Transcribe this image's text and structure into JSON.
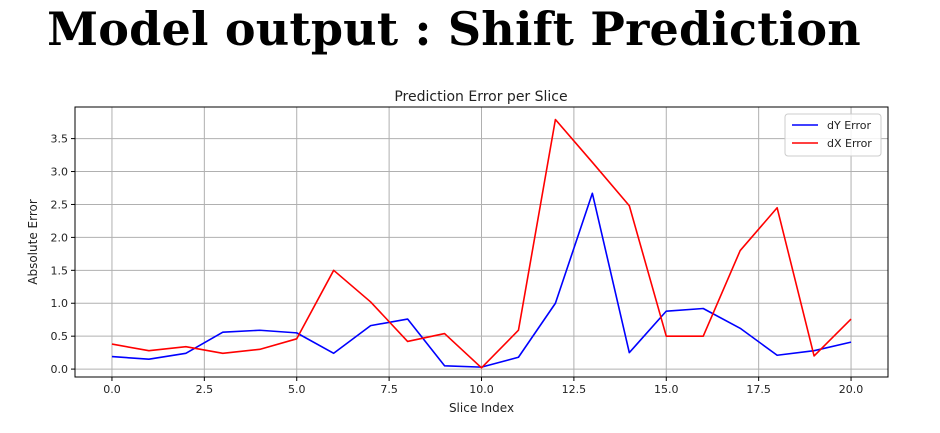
{
  "page": {
    "headline": "Model output : Shift Prediction"
  },
  "chart_data": {
    "type": "line",
    "title": "Prediction Error per Slice",
    "xlabel": "Slice Index",
    "ylabel": "Absolute Error",
    "xlim": [
      -1.0,
      21.0
    ],
    "ylim": [
      -0.12,
      3.98
    ],
    "xticks": [
      0.0,
      2.5,
      5.0,
      7.5,
      10.0,
      12.5,
      15.0,
      17.5,
      20.0
    ],
    "xtick_labels": [
      "0.0",
      "2.5",
      "5.0",
      "7.5",
      "10.0",
      "12.5",
      "15.0",
      "17.5",
      "20.0"
    ],
    "yticks": [
      0.0,
      0.5,
      1.0,
      1.5,
      2.0,
      2.5,
      3.0,
      3.5
    ],
    "ytick_labels": [
      "0.0",
      "0.5",
      "1.0",
      "1.5",
      "2.0",
      "2.5",
      "3.0",
      "3.5"
    ],
    "grid": true,
    "legend_position": "top-right",
    "x": [
      0,
      1,
      2,
      3,
      4,
      5,
      6,
      7,
      8,
      9,
      10,
      11,
      12,
      13,
      14,
      15,
      16,
      17,
      18,
      19,
      20
    ],
    "series": [
      {
        "name": "dY Error",
        "color": "#0000ff",
        "values": [
          0.19,
          0.15,
          0.24,
          0.56,
          0.59,
          0.55,
          0.24,
          0.66,
          0.76,
          0.05,
          0.03,
          0.18,
          1.0,
          2.67,
          0.25,
          0.88,
          0.92,
          0.62,
          0.21,
          0.28,
          0.41
        ]
      },
      {
        "name": "dX Error",
        "color": "#ff0000",
        "values": [
          0.38,
          0.28,
          0.34,
          0.24,
          0.3,
          0.46,
          1.5,
          1.02,
          0.42,
          0.54,
          0.02,
          0.59,
          3.79,
          3.14,
          2.48,
          0.5,
          0.5,
          1.8,
          2.45,
          0.2,
          0.76
        ]
      }
    ]
  }
}
